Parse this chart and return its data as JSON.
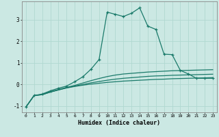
{
  "xlabel": "Humidex (Indice chaleur)",
  "bg_color": "#cbe8e3",
  "grid_color": "#b0d8d0",
  "line_color": "#1a7a6a",
  "xlim": [
    -0.5,
    23.5
  ],
  "ylim": [
    -1.3,
    3.85
  ],
  "xticks": [
    0,
    1,
    2,
    3,
    4,
    5,
    6,
    7,
    8,
    9,
    10,
    11,
    12,
    13,
    14,
    15,
    16,
    17,
    18,
    19,
    20,
    21,
    22,
    23
  ],
  "yticks": [
    -1,
    0,
    1,
    2,
    3
  ],
  "line1_x": [
    0,
    1,
    2,
    3,
    4,
    5,
    6,
    7,
    8,
    9,
    10,
    11,
    12,
    13,
    14,
    15,
    16,
    17,
    18,
    19,
    20,
    21,
    22,
    23
  ],
  "line1_y": [
    -1.05,
    -0.52,
    -0.48,
    -0.36,
    -0.26,
    -0.17,
    -0.1,
    -0.04,
    0.01,
    0.05,
    0.09,
    0.12,
    0.15,
    0.17,
    0.19,
    0.21,
    0.23,
    0.24,
    0.26,
    0.27,
    0.28,
    0.29,
    0.3,
    0.31
  ],
  "line2_x": [
    0,
    1,
    2,
    3,
    4,
    5,
    6,
    7,
    8,
    9,
    10,
    11,
    12,
    13,
    14,
    15,
    16,
    17,
    18,
    19,
    20,
    21,
    22,
    23
  ],
  "line2_y": [
    -1.05,
    -0.52,
    -0.48,
    -0.36,
    -0.26,
    -0.16,
    -0.08,
    -0.01,
    0.07,
    0.13,
    0.19,
    0.24,
    0.28,
    0.31,
    0.34,
    0.37,
    0.39,
    0.4,
    0.42,
    0.43,
    0.44,
    0.45,
    0.46,
    0.47
  ],
  "line3_x": [
    0,
    1,
    2,
    3,
    4,
    5,
    6,
    7,
    8,
    9,
    10,
    11,
    12,
    13,
    14,
    15,
    16,
    17,
    18,
    19,
    20,
    21,
    22,
    23
  ],
  "line3_y": [
    -1.05,
    -0.52,
    -0.47,
    -0.34,
    -0.24,
    -0.14,
    -0.05,
    0.06,
    0.17,
    0.27,
    0.36,
    0.43,
    0.48,
    0.51,
    0.54,
    0.57,
    0.59,
    0.61,
    0.63,
    0.64,
    0.65,
    0.66,
    0.67,
    0.68
  ],
  "line4_x": [
    0,
    1,
    2,
    3,
    4,
    5,
    6,
    7,
    8,
    9,
    10,
    11,
    12,
    13,
    14,
    15,
    16,
    17,
    18,
    19,
    20,
    21,
    22,
    23
  ],
  "line4_y": [
    -1.05,
    -0.52,
    -0.45,
    -0.3,
    -0.18,
    -0.08,
    0.12,
    0.35,
    0.7,
    1.15,
    3.35,
    3.25,
    3.15,
    3.3,
    3.55,
    2.7,
    2.55,
    1.4,
    1.38,
    0.65,
    0.48,
    0.28,
    0.28,
    0.28
  ]
}
